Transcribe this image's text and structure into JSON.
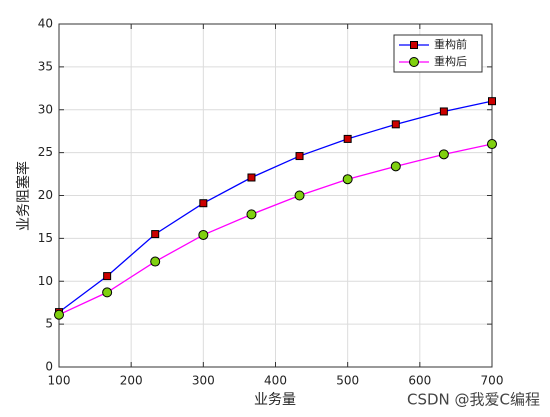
{
  "chart_data": {
    "type": "line",
    "xlabel": "业务量",
    "ylabel": "业务阻塞率",
    "x": [
      100,
      166.7,
      233.3,
      300,
      366.7,
      433.3,
      500,
      566.7,
      633.3,
      700
    ],
    "series": [
      {
        "name": "重构前",
        "color": "#0000ff",
        "marker": "square",
        "marker_color": "#cc0000",
        "values": [
          6.4,
          10.6,
          15.5,
          19.1,
          22.1,
          24.6,
          26.6,
          28.3,
          29.8,
          31.0
        ]
      },
      {
        "name": "重构后",
        "color": "#ff00ff",
        "marker": "circle",
        "marker_color": "#80d010",
        "values": [
          6.1,
          8.7,
          12.3,
          15.4,
          17.8,
          20.0,
          21.9,
          23.4,
          24.8,
          26.0
        ]
      }
    ],
    "xlim": [
      100,
      700
    ],
    "xticks": [
      100,
      200,
      300,
      400,
      500,
      600,
      700
    ],
    "ylim": [
      0,
      40
    ],
    "yticks": [
      0,
      5,
      10,
      15,
      20,
      25,
      30,
      35,
      40
    ],
    "grid": true,
    "legend": "top-right",
    "watermark": "CSDN @我爱C编程"
  }
}
